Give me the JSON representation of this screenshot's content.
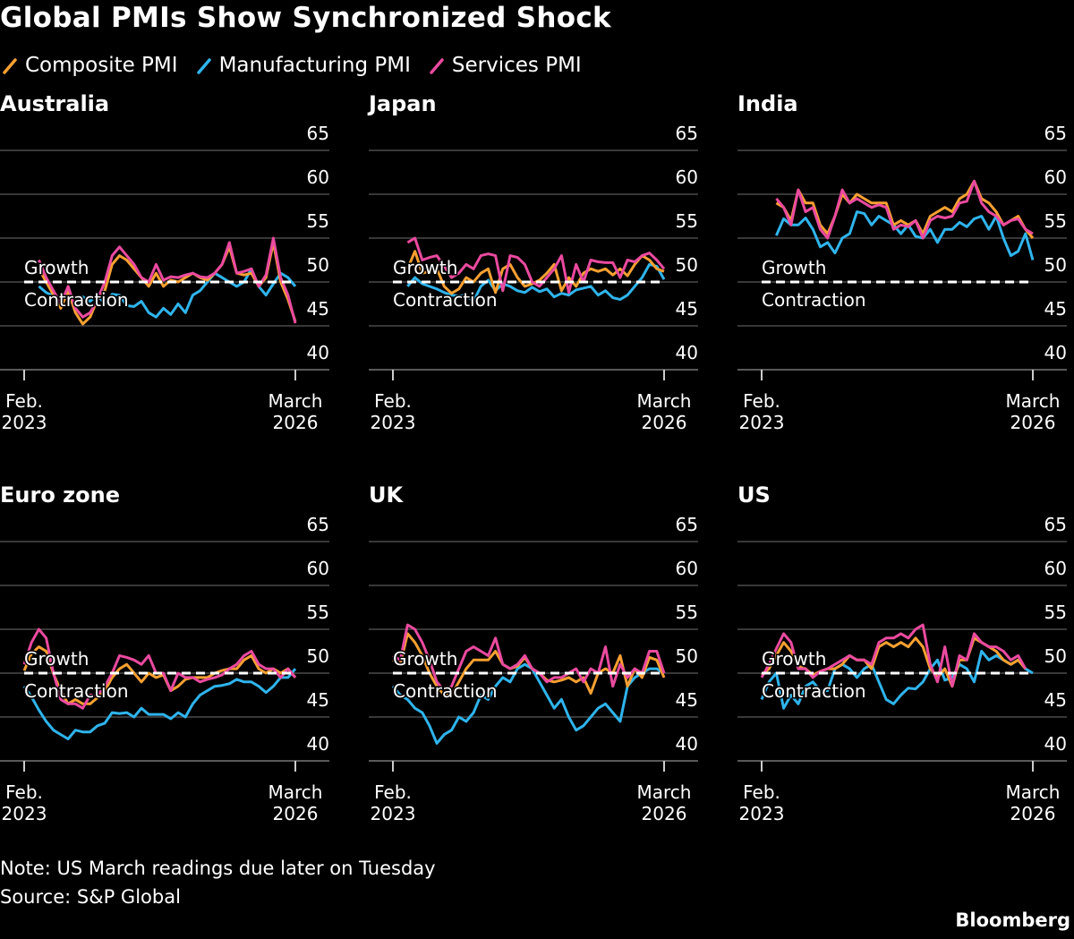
{
  "title": "Global PMIs Show Synchronized Shock",
  "legend": [
    {
      "label": "Composite PMI",
      "color": "#f7a031"
    },
    {
      "label": "Manufacturing PMI",
      "color": "#2fb4ec"
    },
    {
      "label": "Services PMI",
      "color": "#ea4a9f"
    }
  ],
  "notes": {
    "note": "Note: US March readings due later on Tuesday",
    "source": "Source: S&P Global"
  },
  "brand": "Bloomberg",
  "chart_data": [
    {
      "type": "line",
      "title": "Australia",
      "ylim": [
        40,
        65
      ],
      "yticks": [
        65,
        60,
        55,
        50,
        45,
        40
      ],
      "xticks": [
        [
          "Feb.",
          "2023"
        ],
        [
          "March",
          "2026"
        ]
      ],
      "reference": {
        "value": 50,
        "above": "Growth",
        "below": "Contraction"
      },
      "grid": true,
      "series": [
        {
          "name": "Composite PMI",
          "values": [
            null,
            null,
            51.5,
            50,
            48.5,
            47,
            49,
            46.5,
            45.2,
            46,
            48,
            49,
            52,
            53,
            52.5,
            51.5,
            50.5,
            49.5,
            51,
            49.5,
            50.2,
            50,
            50.5,
            51,
            50.5,
            50.2,
            51,
            52,
            54,
            51,
            50.8,
            51,
            49.5,
            50.5,
            54.5,
            50,
            48,
            45.5
          ]
        },
        {
          "name": "Manufacturing PMI",
          "values": [
            null,
            null,
            49.5,
            48.8,
            48.4,
            48.2,
            48.5,
            48,
            48.3,
            47.8,
            48.5,
            47.5,
            48.6,
            48.5,
            47.3,
            47.2,
            47.8,
            46.5,
            46,
            47,
            46.3,
            47.5,
            46.5,
            48.5,
            49,
            50,
            51,
            50.5,
            50,
            49.5,
            50,
            51.5,
            49.5,
            48.5,
            49.8,
            51,
            50.5,
            49.5
          ]
        },
        {
          "name": "Services PMI",
          "values": [
            null,
            null,
            52.5,
            50.5,
            49,
            47.5,
            49.5,
            47,
            46,
            46.5,
            48,
            50,
            53,
            54,
            53,
            52,
            50.5,
            50,
            52,
            50.2,
            50.6,
            50.5,
            50.8,
            51,
            50.6,
            50.5,
            51,
            52,
            54.5,
            51,
            51.2,
            51.5,
            49.5,
            50.8,
            55,
            50.5,
            48.5,
            45.3
          ]
        }
      ]
    },
    {
      "type": "line",
      "title": "Japan",
      "ylim": [
        40,
        65
      ],
      "yticks": [
        65,
        60,
        55,
        50,
        45,
        40
      ],
      "xticks": [
        [
          "Feb.",
          "2023"
        ],
        [
          "March",
          "2026"
        ]
      ],
      "reference": {
        "value": 50,
        "above": "Growth",
        "below": "Contraction"
      },
      "grid": true,
      "series": [
        {
          "name": "Composite PMI",
          "values": [
            null,
            null,
            51.5,
            53.5,
            51,
            51.2,
            51.5,
            49.5,
            48.7,
            49.2,
            50.5,
            50,
            51,
            51.5,
            48.8,
            51.5,
            52,
            50.5,
            49.5,
            49.8,
            50.2,
            51,
            52,
            49,
            50.5,
            49.5,
            51,
            51.5,
            51.2,
            51.5,
            50.8,
            51.5,
            50.7,
            52,
            53,
            52.5,
            51.5,
            51.2
          ]
        },
        {
          "name": "Manufacturing PMI",
          "values": [
            null,
            null,
            49.5,
            50.5,
            49.8,
            49.5,
            49.2,
            48.8,
            48.5,
            48.4,
            48.5,
            47.8,
            49.5,
            50.2,
            49,
            49.8,
            49.5,
            49,
            48.8,
            49.4,
            48.9,
            49.2,
            48.3,
            48.7,
            48.5,
            49.1,
            49.3,
            49.5,
            48.5,
            49,
            48.2,
            48,
            48.5,
            49.5,
            50.5,
            52,
            51.8,
            50.3
          ]
        },
        {
          "name": "Services PMI",
          "values": [
            null,
            null,
            54.5,
            55,
            52.5,
            52.8,
            53,
            51.8,
            50.5,
            51,
            52,
            51.5,
            53,
            53.2,
            53,
            49,
            53,
            52.8,
            52,
            50,
            49.5,
            50.5,
            51.5,
            53,
            48.8,
            52,
            50,
            52.5,
            52.3,
            52.2,
            52.2,
            50.5,
            52.5,
            52.3,
            53,
            53.3,
            52.5,
            51.5
          ]
        }
      ]
    },
    {
      "type": "line",
      "title": "India",
      "ylim": [
        40,
        65
      ],
      "yticks": [
        65,
        60,
        55,
        50,
        45,
        40
      ],
      "xticks": [
        [
          "Feb.",
          "2023"
        ],
        [
          "March",
          "2026"
        ]
      ],
      "reference": {
        "value": 50,
        "above": "Growth",
        "below": "Contraction"
      },
      "grid": true,
      "series": [
        {
          "name": "Composite PMI",
          "values": [
            null,
            null,
            59,
            58.5,
            57,
            60.5,
            59,
            59,
            56.5,
            55.5,
            57.5,
            60,
            59,
            60,
            59.5,
            59,
            59,
            59,
            56.5,
            57,
            56.5,
            57,
            55.5,
            57.5,
            58,
            58.5,
            58,
            59.5,
            60,
            61.5,
            59.5,
            59,
            58,
            56.5,
            57,
            57.5,
            56,
            55
          ]
        },
        {
          "name": "Manufacturing PMI",
          "values": [
            null,
            null,
            55.3,
            57.2,
            56.5,
            56.5,
            57.3,
            56,
            54,
            54.5,
            53.3,
            55,
            55.5,
            58,
            57.8,
            56.5,
            57.5,
            57,
            56.5,
            55.5,
            56.5,
            55.2,
            55,
            56,
            54.5,
            56,
            56,
            56.8,
            56.3,
            57.2,
            57.5,
            56,
            57.5,
            55,
            53,
            53.5,
            55.5,
            52.5
          ]
        },
        {
          "name": "Services PMI",
          "values": [
            null,
            null,
            59.5,
            58.5,
            56.5,
            60.5,
            58,
            58.5,
            56,
            55,
            57.5,
            60.5,
            59,
            59.5,
            59,
            58.5,
            58.8,
            58.5,
            56,
            56.5,
            56.3,
            57,
            55,
            57,
            57.5,
            57.3,
            57.5,
            59,
            59.2,
            61.5,
            59,
            58,
            57.5,
            56.5,
            57,
            57.2,
            56,
            55.5
          ]
        }
      ]
    },
    {
      "type": "line",
      "title": "Euro zone",
      "ylim": [
        40,
        65
      ],
      "yticks": [
        65,
        60,
        55,
        50,
        45,
        40
      ],
      "xticks": [
        [
          "Feb.",
          "2023"
        ],
        [
          "March",
          "2026"
        ]
      ],
      "reference": {
        "value": 50,
        "above": "Growth",
        "below": "Contraction"
      },
      "grid": true,
      "series": [
        {
          "name": "Composite PMI",
          "values": [
            50.3,
            52.2,
            53,
            52.5,
            49.9,
            48,
            46.5,
            47,
            46.5,
            46.5,
            47.2,
            48,
            49.5,
            50.5,
            51,
            50,
            49,
            50,
            49.5,
            49.8,
            48,
            48.5,
            49.3,
            49.5,
            49.5,
            49.5,
            50,
            50.3,
            50.5,
            50.5,
            51.5,
            52,
            50.5,
            50,
            50.5,
            50,
            50.5,
            49.5
          ]
        },
        {
          "name": "Manufacturing PMI",
          "values": [
            48.5,
            47.3,
            45.8,
            44.5,
            43.5,
            43,
            42.5,
            43.5,
            43.3,
            43.3,
            44,
            44.3,
            45.5,
            45.4,
            45.5,
            45,
            46,
            45.3,
            45.3,
            45.3,
            44.8,
            45.5,
            45,
            46.5,
            47.5,
            48,
            48.5,
            48.6,
            48.8,
            49.3,
            49,
            49,
            48.5,
            47.8,
            48.5,
            49.5,
            49.5,
            50.5
          ]
        },
        {
          "name": "Services PMI",
          "values": [
            51,
            53.5,
            55,
            54,
            50,
            47,
            46.5,
            46.5,
            46,
            47.5,
            47.5,
            48.5,
            50,
            52,
            51.8,
            51.5,
            51,
            52,
            50,
            50,
            48,
            50,
            49.5,
            49.5,
            49,
            49.3,
            49.5,
            49.8,
            50.5,
            51,
            52,
            52.5,
            51,
            50.5,
            50.5,
            49.5,
            50.5,
            49.5
          ]
        }
      ]
    },
    {
      "type": "line",
      "title": "UK",
      "ylim": [
        40,
        65
      ],
      "yticks": [
        65,
        60,
        55,
        50,
        45,
        40
      ],
      "xticks": [
        [
          "Feb.",
          "2023"
        ],
        [
          "March",
          "2026"
        ]
      ],
      "reference": {
        "value": 50,
        "above": "Growth",
        "below": "Contraction"
      },
      "grid": true,
      "series": [
        {
          "name": "Composite PMI",
          "values": [
            51.5,
            51,
            54.5,
            53.5,
            52,
            50,
            48.5,
            47.5,
            47.5,
            49,
            50.5,
            51.5,
            51.5,
            51.5,
            52.5,
            51,
            50.5,
            50.8,
            51.8,
            50.5,
            50,
            49.2,
            49,
            49.2,
            49.5,
            49,
            49.5,
            47.7,
            50,
            50.5,
            50,
            52,
            48.5,
            50.5,
            49.5,
            51.8,
            51.5,
            49.5
          ]
        },
        {
          "name": "Manufacturing PMI",
          "values": [
            48.5,
            47.5,
            47,
            46,
            45.5,
            44,
            42,
            43,
            43.5,
            45,
            44.5,
            45.5,
            47.5,
            47,
            48.5,
            49.5,
            49,
            50.5,
            51,
            50.5,
            49,
            47.5,
            46,
            47,
            45,
            43.5,
            44,
            45,
            46,
            46.5,
            45.5,
            44.5,
            48.5,
            49.5,
            50,
            50.5,
            50.5,
            50
          ]
        },
        {
          "name": "Services PMI",
          "values": [
            52,
            51.5,
            55.5,
            55,
            53.5,
            51.5,
            49,
            48,
            48.5,
            50.5,
            52.5,
            53,
            52.5,
            52,
            54,
            51,
            50.5,
            51,
            52,
            50.5,
            50,
            49,
            49.5,
            49.5,
            50,
            50.5,
            49,
            50.5,
            50,
            53,
            48.5,
            51,
            49.5,
            50.5,
            50,
            52.5,
            52.5,
            50
          ]
        }
      ]
    },
    {
      "type": "line",
      "title": "US",
      "ylim": [
        40,
        65
      ],
      "yticks": [
        65,
        60,
        55,
        50,
        45,
        40
      ],
      "xticks": [
        [
          "Feb.",
          "2023"
        ],
        [
          "March",
          "2026"
        ]
      ],
      "reference": {
        "value": 50,
        "above": "Growth",
        "below": "Contraction"
      },
      "grid": true,
      "series": [
        {
          "name": "Composite PMI",
          "values": [
            49.8,
            50.5,
            52,
            53.5,
            52.5,
            50.8,
            50.5,
            49.8,
            50.2,
            50.5,
            50.5,
            51,
            52,
            51.5,
            51.5,
            50.5,
            53,
            53.5,
            53,
            53.5,
            53,
            54,
            53,
            50.5,
            49.5,
            50.5,
            48.5,
            51.5,
            51.5,
            54,
            53.5,
            53,
            52.5,
            51.5,
            51,
            51.5,
            50.5,
            null
          ]
        },
        {
          "name": "Manufacturing PMI",
          "values": [
            47,
            49,
            50,
            46,
            47.5,
            46.5,
            48.5,
            49,
            48,
            48,
            50.5,
            51,
            50.5,
            49.5,
            50.5,
            51,
            49,
            47,
            46.5,
            47.5,
            48.3,
            48.2,
            49,
            50.5,
            51.5,
            49.2,
            49.5,
            51,
            50.5,
            49,
            52.5,
            51.5,
            52,
            51.5,
            51,
            51.5,
            50.5,
            50
          ]
        },
        {
          "name": "Services PMI",
          "values": [
            49.5,
            51,
            52.8,
            54.5,
            53.5,
            50.5,
            50.5,
            49.5,
            50.2,
            50.5,
            51,
            51.5,
            52,
            51.5,
            51.5,
            51,
            53.5,
            54,
            54,
            54.5,
            54,
            55,
            55.5,
            51,
            49,
            53,
            48.5,
            52,
            51.5,
            54.5,
            53.5,
            53,
            53,
            52.5,
            51.5,
            52,
            50.5,
            null
          ]
        }
      ]
    }
  ]
}
